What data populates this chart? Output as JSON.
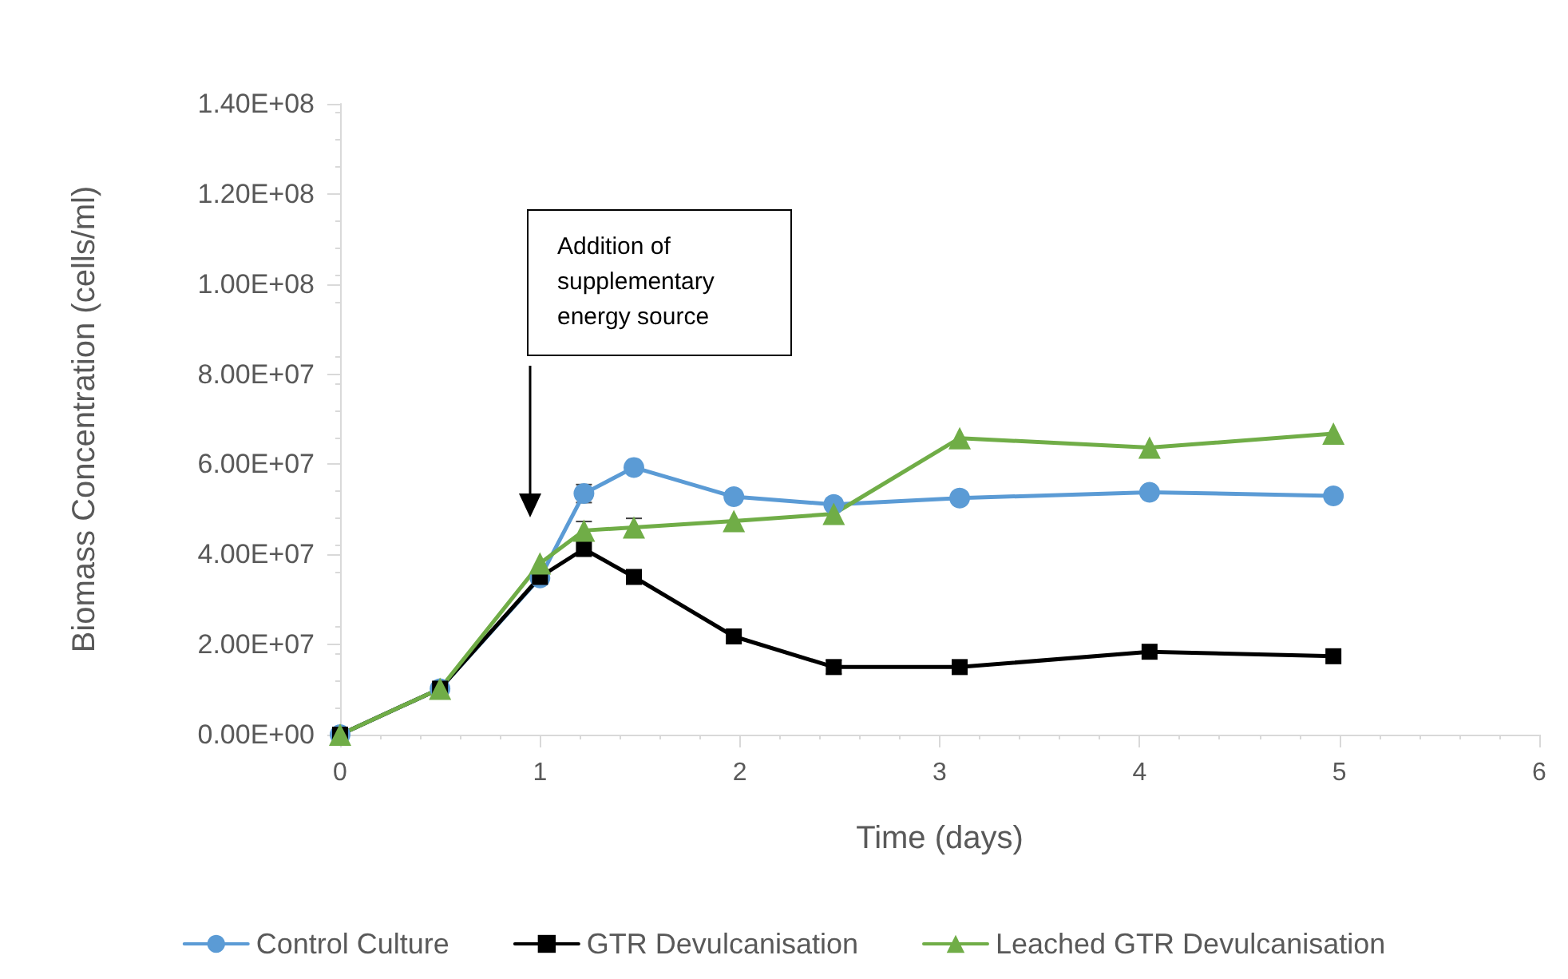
{
  "chart_data": {
    "type": "line",
    "xlabel": "Time (days)",
    "ylabel": "Biomass Concentration (cells/ml)",
    "xlim": [
      0,
      6
    ],
    "xticks": [
      0,
      1,
      2,
      3,
      4,
      5,
      6
    ],
    "ylim": [
      0,
      140000000
    ],
    "yticks": [
      {
        "value": 0,
        "label": "0.00E+00"
      },
      {
        "value": 20000000,
        "label": "2.00E+07"
      },
      {
        "value": 40000000,
        "label": "4.00E+07"
      },
      {
        "value": 60000000,
        "label": "6.00E+07"
      },
      {
        "value": 80000000,
        "label": "8.00E+07"
      },
      {
        "value": 100000000,
        "label": "1.00E+08"
      },
      {
        "value": 120000000,
        "label": "1.20E+08"
      },
      {
        "value": 140000000,
        "label": "1.40E+08"
      }
    ],
    "grid": false,
    "legend": "bottom",
    "x": [
      0,
      0.5,
      1,
      1.22,
      1.47,
      1.97,
      2.47,
      3.1,
      4.05,
      4.97
    ],
    "series": [
      {
        "name": "Control Culture",
        "color": "#5b9bd5",
        "marker": "circle",
        "values": [
          0,
          10200000,
          34800000,
          53500000,
          59300000,
          52800000,
          51100000,
          52500000,
          53800000,
          53000000
        ],
        "errors": [
          null,
          null,
          null,
          2000000,
          null,
          null,
          null,
          null,
          null,
          null
        ]
      },
      {
        "name": "GTR Devulcanisation",
        "color": "#000000",
        "marker": "square",
        "values": [
          0,
          10200000,
          35000000,
          41200000,
          35000000,
          21800000,
          15000000,
          15000000,
          18400000,
          17400000
        ],
        "errors": [
          null,
          null,
          null,
          null,
          null,
          null,
          1500000,
          null,
          null,
          null
        ]
      },
      {
        "name": "Leached GTR Devulcanisation",
        "color": "#70ad47",
        "marker": "triangle",
        "values": [
          0,
          10200000,
          38000000,
          45300000,
          46000000,
          47400000,
          49000000,
          65800000,
          63700000,
          66800000
        ],
        "errors": [
          null,
          null,
          null,
          2000000,
          2000000,
          null,
          null,
          null,
          null,
          null
        ]
      }
    ],
    "annotations": [
      "Addition of\nsupplementary\nenergy source"
    ]
  }
}
